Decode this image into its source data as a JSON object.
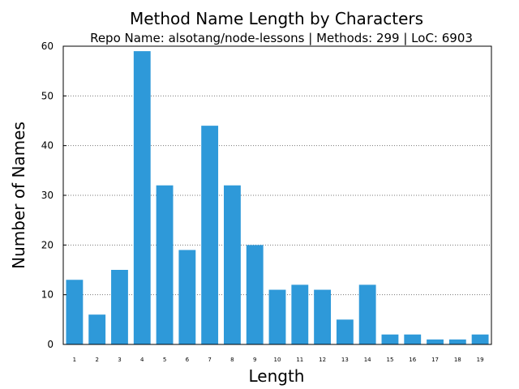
{
  "chart_data": {
    "type": "bar",
    "title": "Method Name Length by Characters",
    "subtitle": "Repo Name: alsotang/node-lessons | Methods: 299 | LoC: 6903",
    "xlabel": "Length",
    "ylabel": "Number of Names",
    "categories": [
      "1",
      "2",
      "3",
      "4",
      "5",
      "6",
      "7",
      "8",
      "9",
      "10",
      "11",
      "12",
      "13",
      "14",
      "15",
      "16",
      "17",
      "18",
      "19"
    ],
    "values": [
      13,
      6,
      15,
      59,
      32,
      19,
      44,
      32,
      20,
      11,
      12,
      11,
      5,
      12,
      2,
      2,
      1,
      1,
      2
    ],
    "ylim": [
      0,
      60
    ],
    "yticks": [
      0,
      10,
      20,
      30,
      40,
      50,
      60
    ],
    "grid": "horizontal dotted",
    "bar_color": "#2e99d9"
  }
}
